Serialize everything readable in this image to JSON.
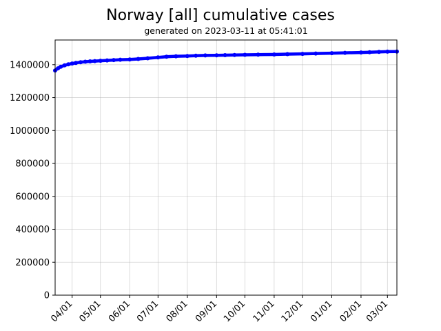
{
  "chart_data": {
    "type": "line",
    "title": "Norway [all] cumulative cases",
    "subtitle": "generated on 2023-03-11 at 05:41:01",
    "xlabel": "",
    "ylabel": "",
    "grid": true,
    "legend": "none",
    "colors": {
      "series": "#0000ff",
      "grid": "#b0b0b0"
    },
    "x_range": [
      "2022-03-14",
      "2023-03-11"
    ],
    "ylim": [
      0,
      1550000
    ],
    "y_ticks": [
      0,
      200000,
      400000,
      600000,
      800000,
      1000000,
      1200000,
      1400000
    ],
    "y_tick_labels": [
      "0",
      "200000",
      "400000",
      "600000",
      "800000",
      "1000000",
      "1200000",
      "1400000"
    ],
    "x_ticks": [
      "2022-04-01",
      "2022-05-01",
      "2022-06-01",
      "2022-07-01",
      "2022-08-01",
      "2022-09-01",
      "2022-10-01",
      "2022-11-01",
      "2022-12-01",
      "2023-01-01",
      "2023-02-01",
      "2023-03-01"
    ],
    "x_tick_labels": [
      "04/01",
      "05/01",
      "06/01",
      "07/01",
      "08/01",
      "09/01",
      "10/01",
      "11/01",
      "12/01",
      "01/01",
      "02/01",
      "03/01"
    ],
    "series": [
      {
        "marker": "circle",
        "x": [
          "2022-03-14",
          "2022-03-17",
          "2022-03-20",
          "2022-03-24",
          "2022-03-28",
          "2022-04-01",
          "2022-04-05",
          "2022-04-10",
          "2022-04-15",
          "2022-04-20",
          "2022-04-25",
          "2022-05-01",
          "2022-05-08",
          "2022-05-15",
          "2022-05-22",
          "2022-06-01",
          "2022-06-10",
          "2022-06-20",
          "2022-07-01",
          "2022-07-10",
          "2022-07-20",
          "2022-08-01",
          "2022-08-10",
          "2022-08-20",
          "2022-09-01",
          "2022-09-10",
          "2022-09-20",
          "2022-10-01",
          "2022-10-15",
          "2022-11-01",
          "2022-11-15",
          "2022-12-01",
          "2022-12-15",
          "2023-01-01",
          "2023-01-15",
          "2023-02-01",
          "2023-02-10",
          "2023-02-20",
          "2023-03-01",
          "2023-03-11"
        ],
        "values": [
          1365000,
          1378000,
          1388000,
          1396000,
          1402000,
          1407000,
          1411000,
          1415000,
          1418000,
          1420000,
          1422000,
          1424000,
          1426000,
          1428000,
          1430000,
          1432000,
          1435000,
          1439000,
          1444000,
          1448000,
          1451000,
          1453000,
          1455000,
          1456000,
          1457000,
          1458000,
          1459000,
          1460000,
          1461000,
          1462000,
          1464000,
          1466000,
          1468000,
          1470000,
          1472000,
          1474000,
          1476000,
          1478000,
          1479000,
          1480000
        ]
      }
    ]
  }
}
